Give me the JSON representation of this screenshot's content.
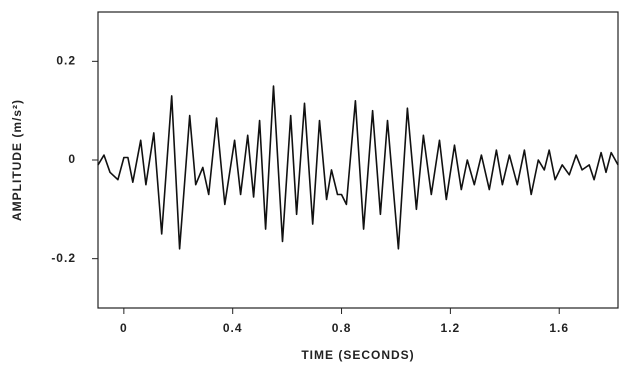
{
  "chart_data": {
    "type": "line",
    "x_label": "TIME (SECONDS)",
    "y_label": "AMPLITUDE (m/s²)",
    "xlim": [
      -0.095,
      1.816
    ],
    "ylim": [
      -0.3,
      0.3
    ],
    "xticks": [
      0,
      0.4,
      0.8,
      1.2,
      1.6
    ],
    "yticks": [
      -0.2,
      0,
      0.2
    ],
    "series": [
      {
        "color": "#111111",
        "x": [
          -0.095,
          -0.073,
          -0.051,
          -0.022,
          0.0,
          0.015,
          0.033,
          0.062,
          0.081,
          0.11,
          0.139,
          0.176,
          0.205,
          0.242,
          0.264,
          0.29,
          0.312,
          0.341,
          0.371,
          0.407,
          0.429,
          0.455,
          0.477,
          0.499,
          0.521,
          0.55,
          0.583,
          0.613,
          0.635,
          0.664,
          0.694,
          0.719,
          0.745,
          0.763,
          0.785,
          0.8,
          0.818,
          0.851,
          0.881,
          0.914,
          0.943,
          0.969,
          1.009,
          1.042,
          1.075,
          1.101,
          1.13,
          1.16,
          1.185,
          1.215,
          1.24,
          1.262,
          1.288,
          1.314,
          1.343,
          1.369,
          1.391,
          1.417,
          1.446,
          1.472,
          1.497,
          1.523,
          1.545,
          1.563,
          1.585,
          1.611,
          1.637,
          1.662,
          1.684,
          1.71,
          1.728,
          1.754,
          1.772,
          1.791,
          1.816
        ],
        "values": [
          -0.01,
          0.01,
          -0.025,
          -0.04,
          0.005,
          0.005,
          -0.045,
          0.04,
          -0.05,
          0.055,
          -0.15,
          0.13,
          -0.18,
          0.09,
          -0.05,
          -0.015,
          -0.07,
          0.085,
          -0.09,
          0.04,
          -0.07,
          0.05,
          -0.075,
          0.08,
          -0.14,
          0.15,
          -0.165,
          0.09,
          -0.11,
          0.115,
          -0.13,
          0.08,
          -0.08,
          -0.02,
          -0.07,
          -0.07,
          -0.09,
          0.12,
          -0.14,
          0.1,
          -0.11,
          0.08,
          -0.18,
          0.105,
          -0.1,
          0.05,
          -0.07,
          0.04,
          -0.08,
          0.03,
          -0.06,
          0.0,
          -0.05,
          0.01,
          -0.06,
          0.02,
          -0.05,
          0.01,
          -0.05,
          0.02,
          -0.07,
          0.0,
          -0.02,
          0.02,
          -0.04,
          -0.01,
          -0.03,
          0.01,
          -0.02,
          -0.01,
          -0.04,
          0.015,
          -0.025,
          0.015,
          -0.01
        ]
      }
    ]
  }
}
